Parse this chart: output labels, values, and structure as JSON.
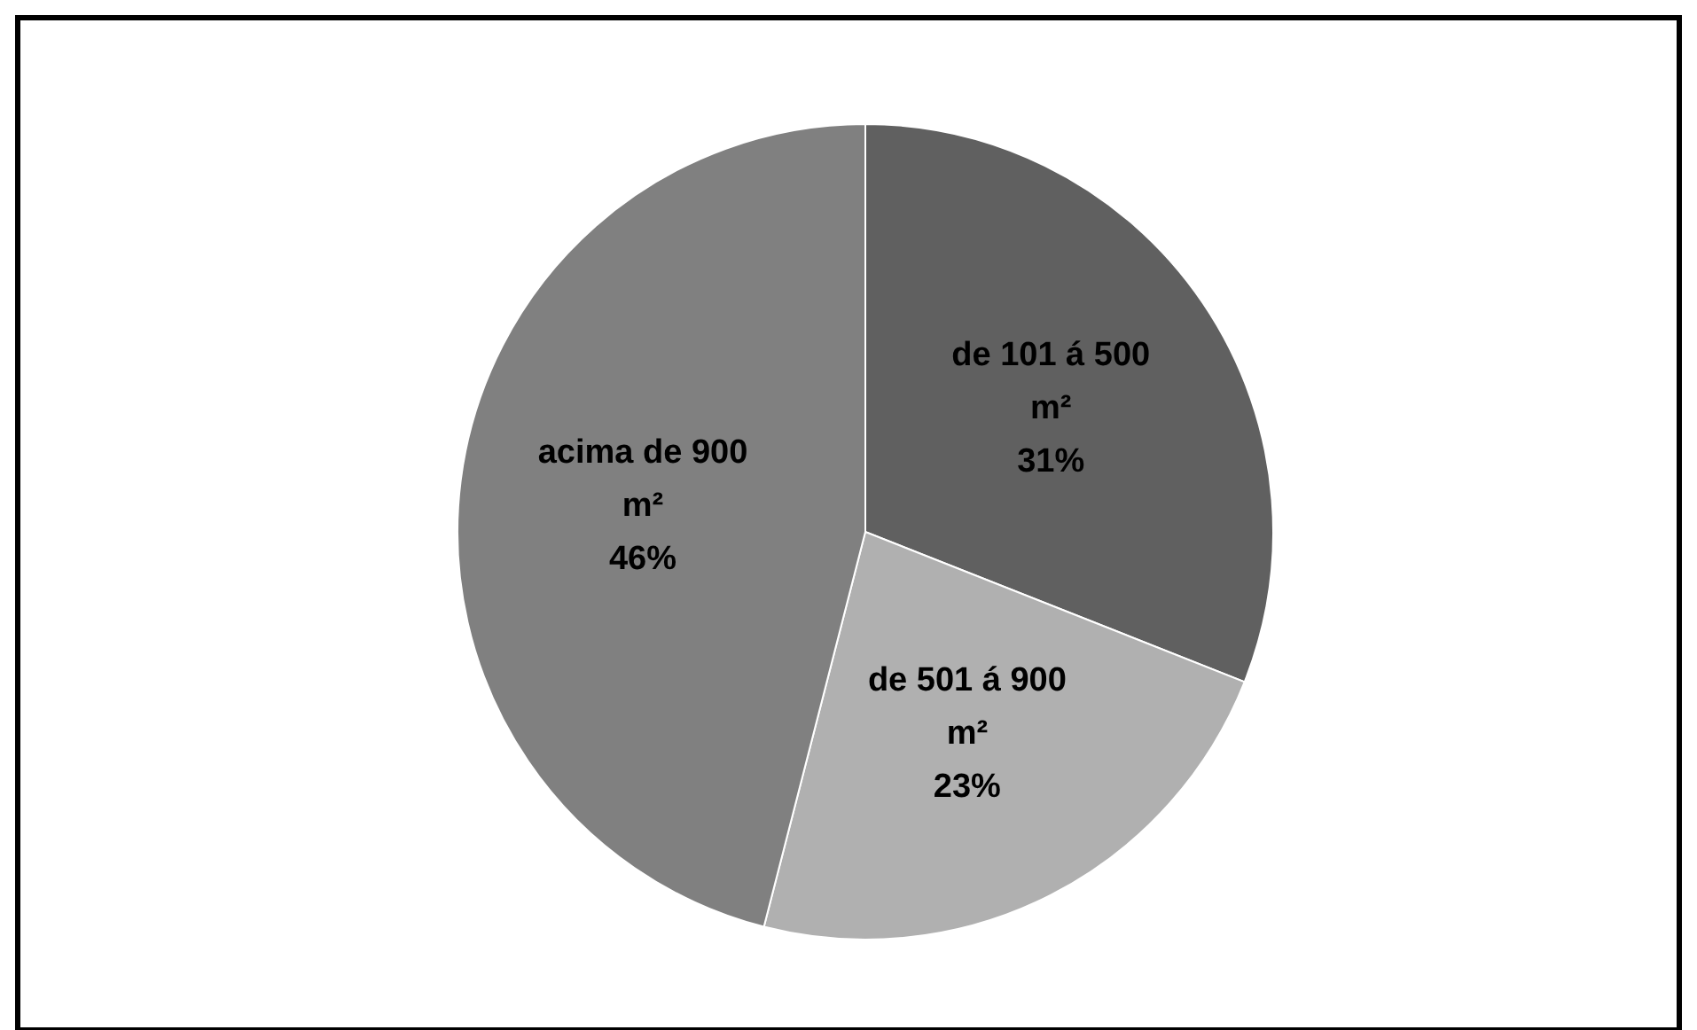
{
  "chart_data": {
    "type": "pie",
    "categories": [
      "de 101 á 500 m²",
      "de 501 á 900 m²",
      "acima de 900 m²"
    ],
    "values": [
      31,
      23,
      46
    ],
    "value_labels": [
      "31%",
      "23%",
      "46%"
    ],
    "colors": [
      "#606060",
      "#b0b0b0",
      "#808080"
    ]
  }
}
